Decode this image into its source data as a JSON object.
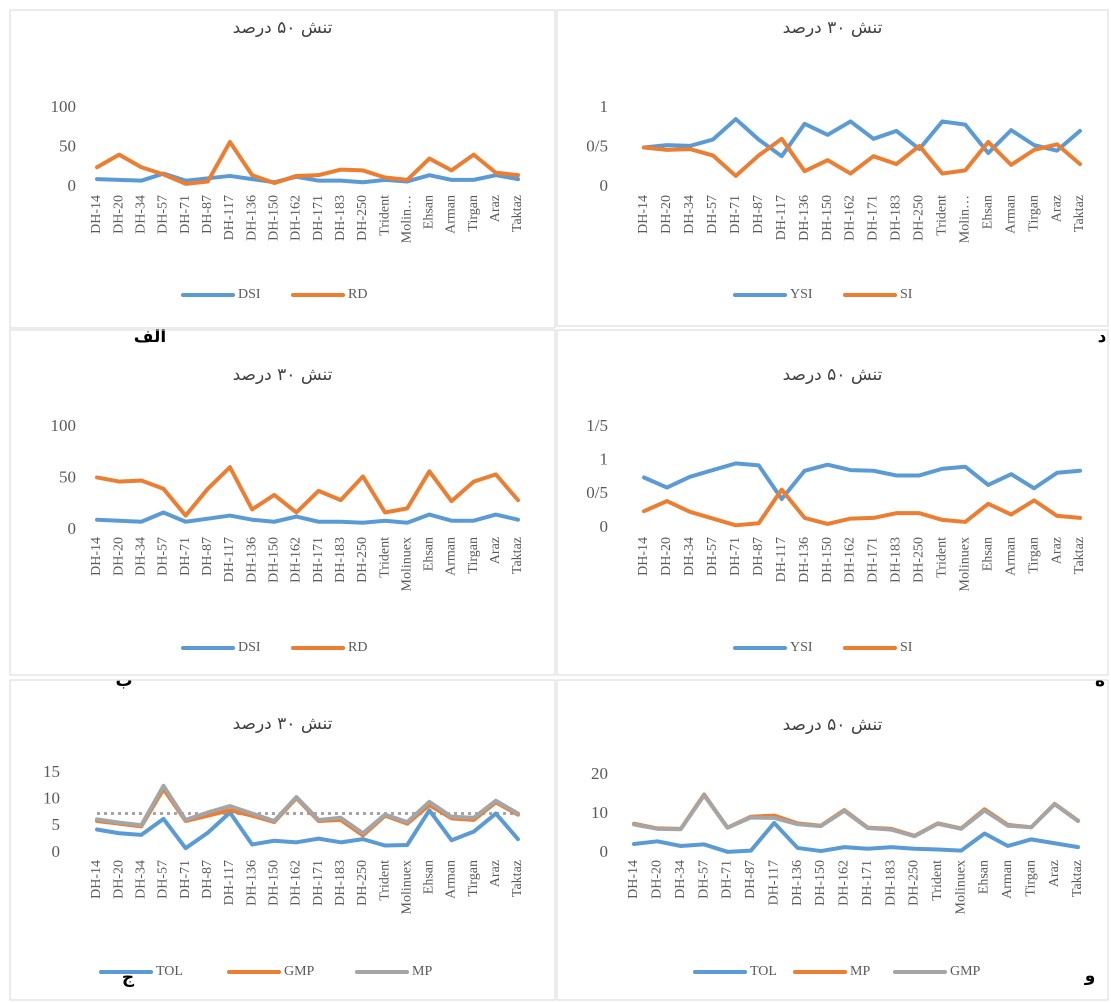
{
  "chart_data": [
    {
      "type": "line",
      "title": "تنش ۵۰ درصد",
      "panel_label": "الف",
      "categories": [
        "DH-14",
        "DH-20",
        "DH-34",
        "DH-57",
        "DH-71",
        "DH-87",
        "DH-117",
        "DH-136",
        "DH-150",
        "DH-162",
        "DH-171",
        "DH-183",
        "DH-250",
        "Trident",
        "Molin…",
        "Ehsan",
        "Arman",
        "Tirgan",
        "Araz",
        "Taktaz"
      ],
      "series": [
        {
          "name": "DSI",
          "color": "#5b9bd5",
          "values": [
            10,
            9,
            8,
            17,
            8,
            11,
            14,
            10,
            6,
            13,
            8,
            8,
            6,
            9,
            7,
            15,
            9,
            9,
            15,
            10
          ]
        },
        {
          "name": "RD",
          "color": "#ed7d31",
          "values": [
            25,
            41,
            25,
            16,
            4,
            7,
            57,
            15,
            5,
            14,
            15,
            22,
            21,
            12,
            9,
            36,
            21,
            41,
            18,
            15
          ]
        }
      ],
      "ylim": [
        0,
        100
      ],
      "yticks": [
        0,
        50,
        100
      ],
      "grid": false,
      "legend": "bottom"
    },
    {
      "type": "line",
      "title": "تنش ۳۰ درصد",
      "panel_label": "د",
      "categories": [
        "DH-14",
        "DH-20",
        "DH-34",
        "DH-57",
        "DH-71",
        "DH-87",
        "DH-117",
        "DH-136",
        "DH-150",
        "DH-162",
        "DH-171",
        "DH-183",
        "DH-250",
        "Trident",
        "Molin…",
        "Ehsan",
        "Arman",
        "Tirgan",
        "Araz",
        "Taktaz"
      ],
      "series": [
        {
          "name": "YSI",
          "color": "#5b9bd5",
          "values": [
            0.5,
            0.53,
            0.52,
            0.6,
            0.86,
            0.6,
            0.39,
            0.8,
            0.66,
            0.83,
            0.61,
            0.71,
            0.48,
            0.83,
            0.79,
            0.43,
            0.72,
            0.53,
            0.46,
            0.71
          ]
        },
        {
          "name": "SI",
          "color": "#ed7d31",
          "values": [
            0.5,
            0.47,
            0.48,
            0.4,
            0.14,
            0.4,
            0.61,
            0.2,
            0.34,
            0.17,
            0.39,
            0.29,
            0.52,
            0.17,
            0.21,
            0.57,
            0.28,
            0.47,
            0.54,
            0.29
          ]
        }
      ],
      "ylim": [
        0,
        1
      ],
      "yticks": [
        0,
        {
          "value": 0.5,
          "label": "0/5"
        },
        1
      ],
      "grid": false,
      "legend": "bottom"
    },
    {
      "type": "line",
      "title": "تنش ۳۰ درصد",
      "panel_label": "ب",
      "categories": [
        "DH-14",
        "DH-20",
        "DH-34",
        "DH-57",
        "DH-71",
        "DH-87",
        "DH-117",
        "DH-136",
        "DH-150",
        "DH-162",
        "DH-171",
        "DH-183",
        "DH-250",
        "Trident",
        "Molinuex",
        "Ehsan",
        "Arman",
        "Tirgan",
        "Araz",
        "Taktaz"
      ],
      "series": [
        {
          "name": "DSI",
          "color": "#5b9bd5",
          "values": [
            10,
            9,
            8,
            17,
            8,
            11,
            14,
            10,
            8,
            13,
            8,
            8,
            7,
            9,
            7,
            15,
            9,
            9,
            15,
            10
          ]
        },
        {
          "name": "RD",
          "color": "#ed7d31",
          "values": [
            51,
            47,
            48,
            40,
            14,
            40,
            61,
            20,
            34,
            17,
            38,
            29,
            52,
            17,
            21,
            57,
            28,
            47,
            54,
            29
          ]
        }
      ],
      "ylim": [
        0,
        100
      ],
      "yticks": [
        0,
        50,
        100
      ],
      "grid": false,
      "legend": "bottom"
    },
    {
      "type": "line",
      "title": "تنش ۵۰ درصد",
      "panel_label": "ه",
      "categories": [
        "DH-14",
        "DH-20",
        "DH-34",
        "DH-57",
        "DH-71",
        "DH-87",
        "DH-117",
        "DH-136",
        "DH-150",
        "DH-162",
        "DH-171",
        "DH-183",
        "DH-250",
        "Trident",
        "Molinuex",
        "Ehsan",
        "Arman",
        "Tirgan",
        "Araz",
        "Taktaz"
      ],
      "series": [
        {
          "name": "YSI",
          "color": "#5b9bd5",
          "values": [
            0.75,
            0.6,
            0.76,
            0.86,
            0.96,
            0.93,
            0.43,
            0.85,
            0.94,
            0.86,
            0.85,
            0.78,
            0.78,
            0.88,
            0.91,
            0.64,
            0.8,
            0.59,
            0.82,
            0.85
          ]
        },
        {
          "name": "SI",
          "color": "#ed7d31",
          "values": [
            0.25,
            0.4,
            0.24,
            0.14,
            0.04,
            0.07,
            0.57,
            0.15,
            0.06,
            0.14,
            0.15,
            0.22,
            0.22,
            0.12,
            0.09,
            0.36,
            0.2,
            0.41,
            0.18,
            0.15
          ]
        }
      ],
      "ylim": [
        0,
        1.5
      ],
      "yticks": [
        0,
        {
          "value": 0.5,
          "label": "0/5"
        },
        1,
        {
          "value": 1.5,
          "label": "1/5"
        }
      ],
      "grid": false,
      "legend": "bottom"
    },
    {
      "type": "line",
      "title": "تنش ۳۰ درصد",
      "panel_label": "ج",
      "categories": [
        "DH-14",
        "DH-20",
        "DH-34",
        "DH-57",
        "DH-71",
        "DH-87",
        "DH-117",
        "DH-136",
        "DH-150",
        "DH-162",
        "DH-171",
        "DH-183",
        "DH-250",
        "Trident",
        "Molinuex",
        "Ehsan",
        "Arman",
        "Tirgan",
        "Araz",
        "Taktaz"
      ],
      "series": [
        {
          "name": "TOL",
          "color": "#5b9bd5",
          "values": [
            4.4,
            3.7,
            3.4,
            6.4,
            0.9,
            3.8,
            7.6,
            1.6,
            2.3,
            2,
            2.7,
            2,
            2.6,
            1.4,
            1.5,
            8,
            2.4,
            4,
            7.4,
            2.6
          ]
        },
        {
          "name": "GMP",
          "color": "#ed7d31",
          "values": [
            6,
            5.5,
            5,
            12,
            6,
            7,
            8,
            7,
            5.8,
            10.3,
            6,
            6.2,
            3.3,
            7,
            5.5,
            9,
            6.5,
            6.2,
            9.5,
            7.2
          ]
        },
        {
          "name": "MP",
          "color": "#a5a5a5",
          "values": [
            6.3,
            5.7,
            5.2,
            12.6,
            6.2,
            7.6,
            8.8,
            7.4,
            6,
            10.5,
            6.2,
            6.6,
            3.7,
            7.2,
            5.8,
            9.6,
            6.8,
            6.6,
            9.8,
            7.4
          ]
        }
      ],
      "reference_line": 7.4,
      "reference_color": "#a5a5a5",
      "ylim": [
        0,
        15
      ],
      "yticks": [
        0,
        5,
        10,
        15
      ],
      "grid": false,
      "legend": "bottom"
    },
    {
      "type": "line",
      "title": "تنش ۵۰ درصد",
      "panel_label": "و",
      "categories": [
        "DH-14",
        "DH-20",
        "DH-34",
        "DH-57",
        "DH-71",
        "DH-87",
        "DH-117",
        "DH-136",
        "DH-150",
        "DH-162",
        "DH-171",
        "DH-183",
        "DH-250",
        "Trident",
        "Molinuex",
        "Ehsan",
        "Arman",
        "Tirgan",
        "Araz",
        "Taktaz"
      ],
      "series": [
        {
          "name": "TOL",
          "color": "#5b9bd5",
          "values": [
            2.3,
            3,
            1.8,
            2.2,
            0.3,
            0.6,
            7.7,
            1.3,
            0.5,
            1.5,
            1.1,
            1.5,
            1.1,
            0.9,
            0.6,
            5,
            1.8,
            3.5,
            2.5,
            1.5
          ]
        },
        {
          "name": "MP",
          "color": "#ed7d31",
          "values": [
            7.5,
            6.3,
            6.2,
            15,
            6.5,
            9.3,
            9.6,
            7.6,
            7,
            11,
            6.5,
            6.2,
            4.4,
            7.6,
            6.3,
            11.2,
            7.2,
            6.6,
            12.6,
            8.3
          ]
        },
        {
          "name": "GMP",
          "color": "#a5a5a5",
          "values": [
            7.3,
            6.2,
            6.1,
            14.8,
            6.5,
            9.1,
            9,
            7.4,
            6.9,
            10.8,
            6.4,
            6,
            4.3,
            7.5,
            6.2,
            10.9,
            7,
            6.6,
            12.5,
            8.2
          ]
        }
      ],
      "ylim": [
        0,
        20
      ],
      "yticks": [
        0,
        10,
        20
      ],
      "grid": false,
      "legend": "bottom"
    }
  ]
}
